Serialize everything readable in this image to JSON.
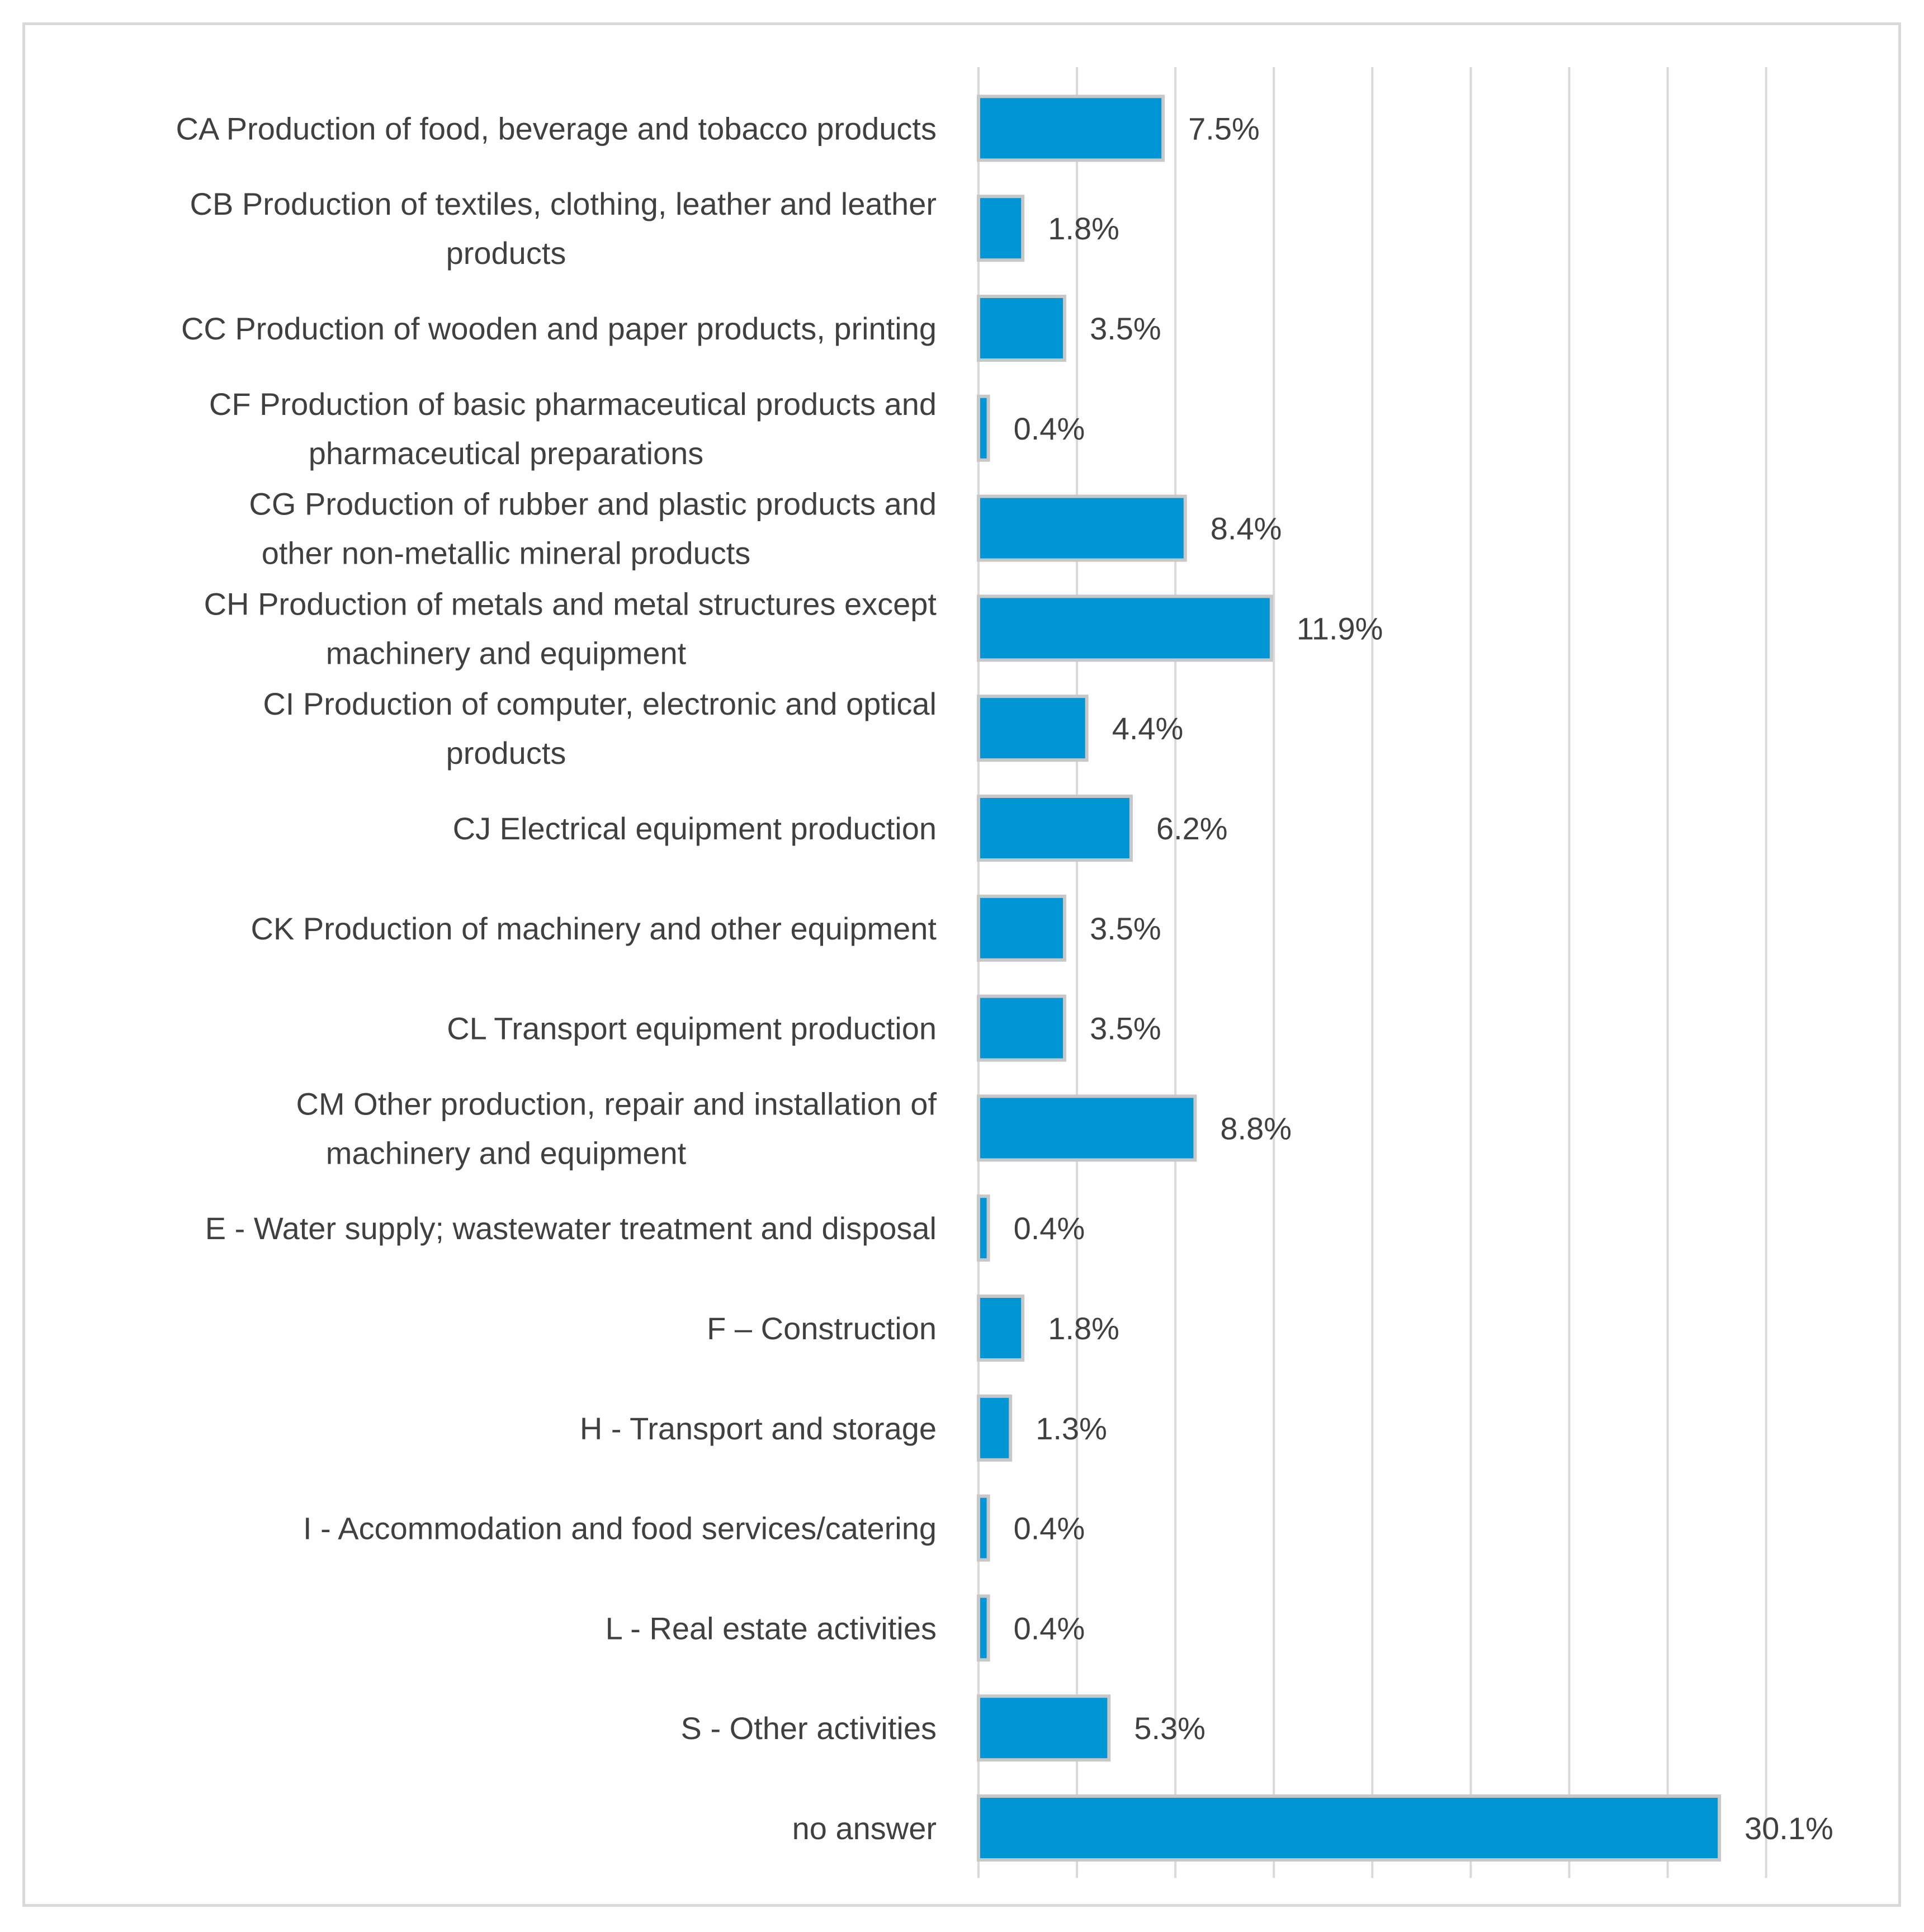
{
  "chart_data": {
    "type": "bar",
    "orientation": "horizontal",
    "title": "",
    "xlabel": "",
    "ylabel": "",
    "xlim": [
      0,
      32
    ],
    "grid": true,
    "bar_color": "#0096d6",
    "categories": [
      [
        "CA Production of food, beverage and tobacco products"
      ],
      [
        "CB Production of textiles, clothing, leather and leather",
        "products"
      ],
      [
        "CC Production of wooden and paper products, printing"
      ],
      [
        "CF Production of basic pharmaceutical products and",
        "pharmaceutical preparations"
      ],
      [
        "CG Production of rubber and plastic products and",
        "other non-metallic mineral products"
      ],
      [
        "CH Production of metals and metal structures except",
        "machinery and equipment"
      ],
      [
        "CI Production of computer, electronic and optical",
        "products"
      ],
      [
        "CJ Electrical equipment production"
      ],
      [
        "CK Production of machinery and other equipment"
      ],
      [
        "CL Transport equipment production"
      ],
      [
        "CM Other production, repair and installation of",
        "machinery and equipment"
      ],
      [
        "E - Water supply; wastewater treatment and disposal"
      ],
      [
        "F – Construction"
      ],
      [
        "H - Transport and storage"
      ],
      [
        "I - Accommodation and food services/catering"
      ],
      [
        "L - Real estate activities"
      ],
      [
        "S - Other activities"
      ],
      [
        "no answer"
      ]
    ],
    "values": [
      7.5,
      1.8,
      3.5,
      0.4,
      8.4,
      11.9,
      4.4,
      6.2,
      3.5,
      3.5,
      8.8,
      0.4,
      1.8,
      1.3,
      0.4,
      0.4,
      5.3,
      30.1
    ],
    "value_labels": [
      "7.5%",
      "1.8%",
      "3.5%",
      "0.4%",
      "8.4%",
      "11.9%",
      "4.4%",
      "6.2%",
      "3.5%",
      "3.5%",
      "8.8%",
      "0.4%",
      "1.8%",
      "1.3%",
      "0.4%",
      "0.4%",
      "5.3%",
      "30.1%"
    ]
  }
}
